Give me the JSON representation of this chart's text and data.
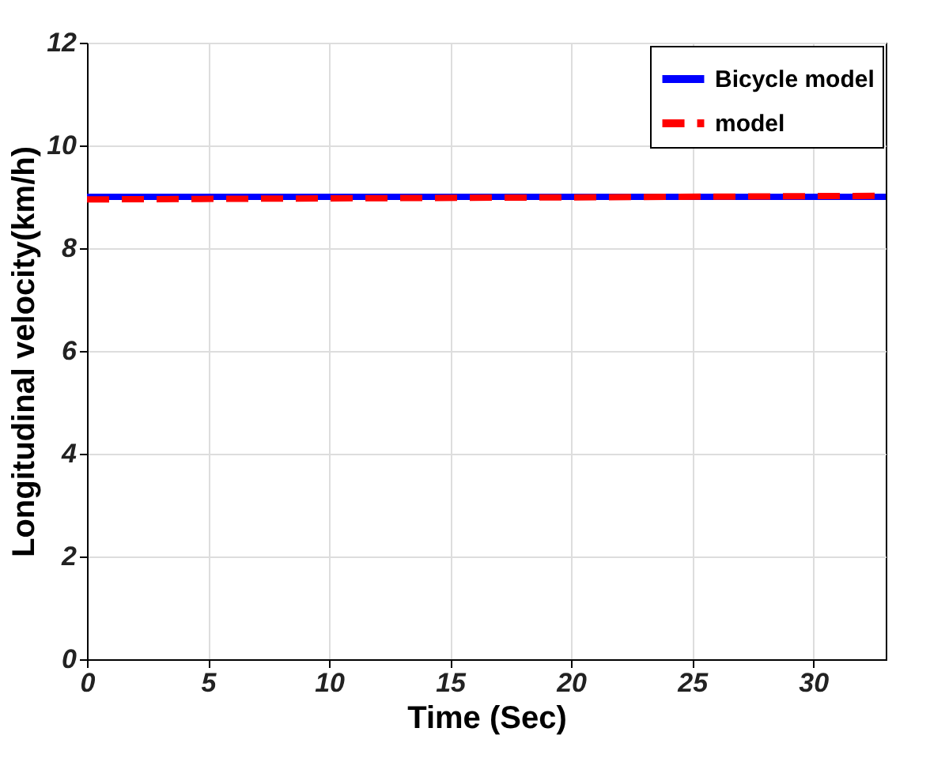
{
  "chart_data": {
    "type": "line",
    "xlabel": "Time (Sec)",
    "ylabel": "Longitudinal velocity(km/h)",
    "series": [
      {
        "name": "Bicycle model",
        "color": "#0000ff",
        "x": [
          0,
          33
        ],
        "values": [
          9.0,
          9.0
        ],
        "line_style": "solid"
      },
      {
        "name": "model",
        "color": "#ff0000",
        "x": [
          0,
          10,
          20,
          33
        ],
        "values": [
          8.95,
          8.97,
          8.99,
          9.02
        ],
        "line_style": "dashed"
      }
    ],
    "xlim": [
      0,
      33
    ],
    "xticks": [
      0,
      5,
      10,
      15,
      20,
      25,
      30
    ],
    "ylim": [
      0,
      12
    ],
    "yticks": [
      0,
      2,
      4,
      6,
      8,
      10,
      12
    ],
    "grid": true,
    "legend": "top right",
    "marker": "none"
  }
}
